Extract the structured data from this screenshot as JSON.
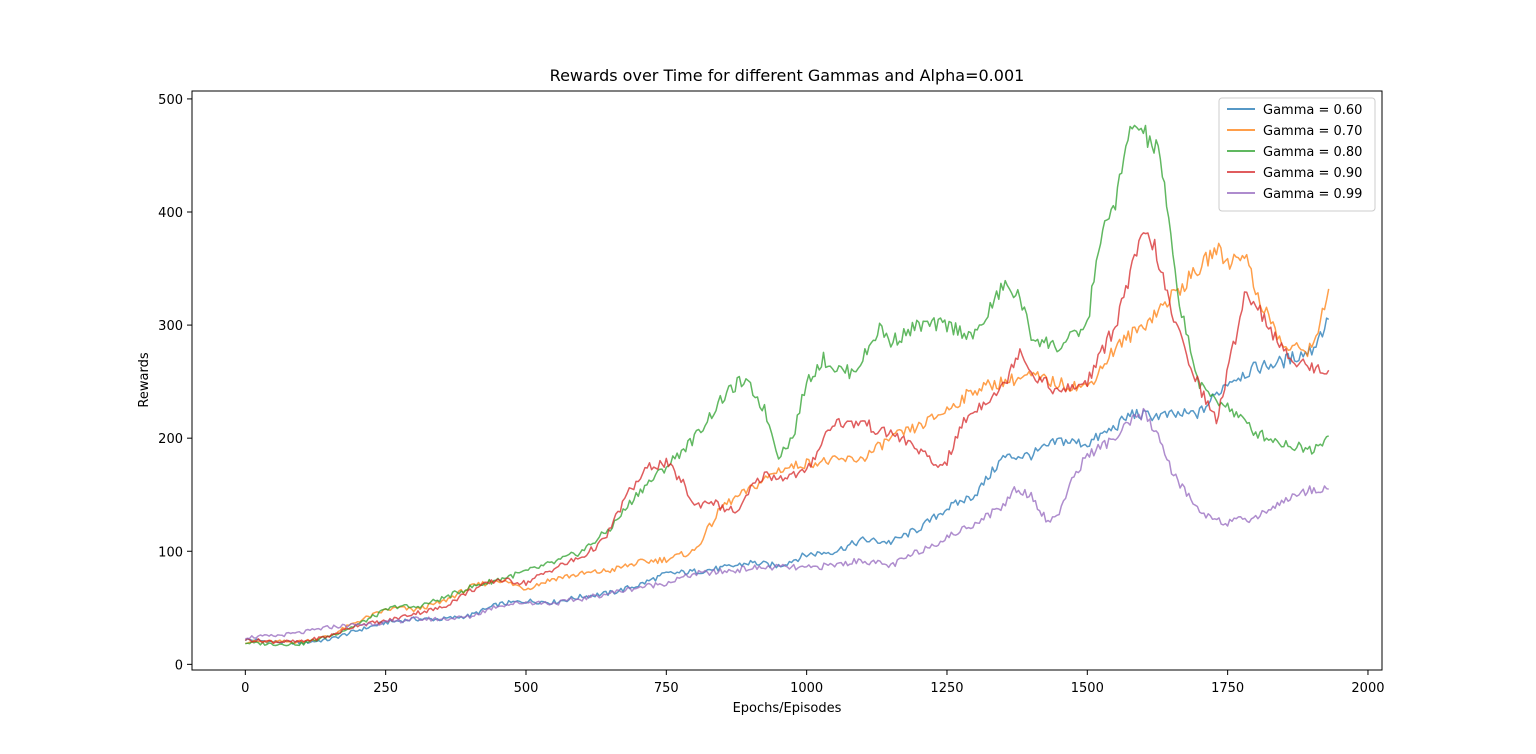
{
  "chart_data": {
    "type": "line",
    "title": "Rewards over Time for different Gammas and Alpha=0.001",
    "xlabel": "Epochs/Episodes",
    "ylabel": "Rewards",
    "xlim": [
      -95,
      2025
    ],
    "ylim": [
      -5,
      507
    ],
    "xticks": [
      0,
      250,
      500,
      750,
      1000,
      1250,
      1500,
      1750,
      2000
    ],
    "yticks": [
      0,
      100,
      200,
      300,
      400,
      500
    ],
    "grid": false,
    "legend_position": "top-right",
    "series": [
      {
        "name": "Gamma = 0.60",
        "color": "#1f77b4",
        "x": [
          0,
          50,
          100,
          150,
          200,
          250,
          300,
          350,
          400,
          450,
          500,
          550,
          600,
          650,
          700,
          750,
          800,
          850,
          900,
          950,
          1000,
          1050,
          1100,
          1150,
          1200,
          1250,
          1300,
          1350,
          1400,
          1450,
          1500,
          1550,
          1580,
          1600,
          1650,
          1700,
          1750,
          1800,
          1850,
          1900,
          1930
        ],
        "y": [
          22,
          20,
          19,
          22,
          30,
          37,
          40,
          40,
          43,
          53,
          56,
          55,
          60,
          63,
          70,
          80,
          82,
          85,
          90,
          87,
          97,
          100,
          110,
          108,
          120,
          138,
          150,
          183,
          185,
          198,
          195,
          210,
          222,
          220,
          220,
          222,
          250,
          262,
          268,
          278,
          305
        ]
      },
      {
        "name": "Gamma = 0.70",
        "color": "#ff7f0e",
        "x": [
          0,
          50,
          100,
          150,
          200,
          250,
          275,
          300,
          350,
          400,
          450,
          500,
          550,
          600,
          650,
          700,
          750,
          800,
          850,
          900,
          950,
          1000,
          1050,
          1100,
          1150,
          1200,
          1250,
          1300,
          1350,
          1400,
          1450,
          1500,
          1550,
          1600,
          1650,
          1700,
          1730,
          1750,
          1780,
          1800,
          1850,
          1900,
          1930
        ],
        "y": [
          20,
          20,
          20,
          25,
          38,
          48,
          50,
          48,
          55,
          68,
          75,
          67,
          76,
          80,
          83,
          90,
          93,
          100,
          140,
          155,
          172,
          178,
          180,
          182,
          200,
          210,
          225,
          243,
          250,
          255,
          248,
          245,
          280,
          300,
          325,
          350,
          368,
          355,
          365,
          330,
          280,
          278,
          332
        ]
      },
      {
        "name": "Gamma = 0.80",
        "color": "#2ca02c",
        "x": [
          0,
          50,
          100,
          150,
          200,
          250,
          275,
          300,
          350,
          400,
          450,
          500,
          550,
          600,
          650,
          700,
          750,
          800,
          850,
          880,
          900,
          925,
          950,
          975,
          1000,
          1030,
          1050,
          1080,
          1100,
          1130,
          1150,
          1200,
          1250,
          1300,
          1350,
          1380,
          1400,
          1450,
          1500,
          1520,
          1550,
          1580,
          1600,
          1630,
          1660,
          1700,
          1750,
          1800,
          1850,
          1900,
          1930
        ],
        "y": [
          19,
          18,
          18,
          25,
          35,
          48,
          52,
          50,
          58,
          68,
          75,
          82,
          90,
          100,
          120,
          152,
          175,
          200,
          235,
          250,
          245,
          225,
          185,
          200,
          250,
          270,
          262,
          258,
          270,
          298,
          285,
          300,
          300,
          290,
          335,
          325,
          290,
          280,
          300,
          370,
          410,
          478,
          470,
          450,
          330,
          245,
          228,
          205,
          195,
          190,
          202
        ]
      },
      {
        "name": "Gamma = 0.90",
        "color": "#d62728",
        "x": [
          0,
          50,
          100,
          150,
          200,
          250,
          300,
          350,
          400,
          450,
          500,
          550,
          600,
          640,
          680,
          720,
          750,
          780,
          800,
          830,
          850,
          880,
          900,
          925,
          950,
          1000,
          1030,
          1050,
          1080,
          1100,
          1130,
          1150,
          1200,
          1230,
          1250,
          1280,
          1300,
          1330,
          1350,
          1380,
          1400,
          1450,
          1500,
          1550,
          1580,
          1600,
          1620,
          1650,
          1700,
          1730,
          1760,
          1780,
          1800,
          1850,
          1900,
          1930
        ],
        "y": [
          22,
          20,
          20,
          25,
          35,
          38,
          45,
          50,
          65,
          75,
          72,
          85,
          95,
          110,
          150,
          175,
          178,
          160,
          140,
          145,
          138,
          135,
          155,
          168,
          165,
          170,
          200,
          215,
          212,
          215,
          205,
          205,
          190,
          175,
          180,
          215,
          225,
          238,
          245,
          280,
          258,
          240,
          250,
          300,
          350,
          380,
          370,
          310,
          245,
          215,
          280,
          328,
          320,
          275,
          262,
          260
        ]
      },
      {
        "name": "Gamma = 0.99",
        "color": "#9467bd",
        "x": [
          0,
          50,
          100,
          150,
          200,
          250,
          300,
          350,
          400,
          450,
          500,
          550,
          600,
          650,
          700,
          750,
          800,
          850,
          900,
          950,
          1000,
          1050,
          1100,
          1150,
          1200,
          1250,
          1300,
          1350,
          1370,
          1400,
          1430,
          1450,
          1480,
          1500,
          1550,
          1580,
          1600,
          1630,
          1650,
          1700,
          1750,
          1800,
          1850,
          1900,
          1930
        ],
        "y": [
          24,
          25,
          28,
          33,
          35,
          37,
          40,
          40,
          42,
          52,
          55,
          54,
          58,
          63,
          68,
          72,
          80,
          82,
          85,
          86,
          85,
          88,
          92,
          87,
          100,
          112,
          125,
          140,
          155,
          150,
          125,
          135,
          170,
          185,
          200,
          215,
          222,
          200,
          170,
          135,
          125,
          130,
          145,
          155,
          155
        ]
      }
    ]
  }
}
